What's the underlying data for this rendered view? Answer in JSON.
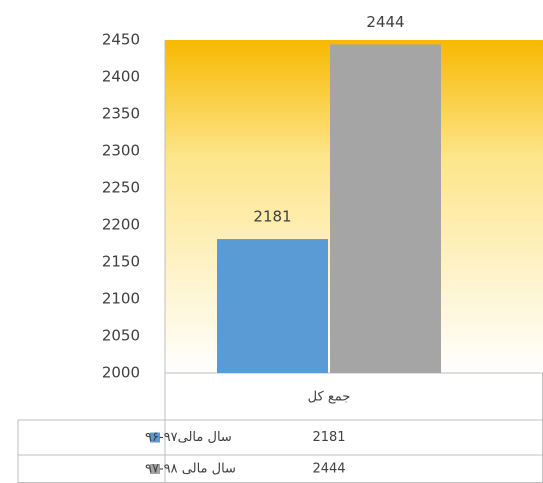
{
  "chart_data": {
    "type": "bar",
    "categories": [
      "جمع کل"
    ],
    "series": [
      {
        "name": "سال مالی۹۷-۹۶",
        "color": "#5b9bd5",
        "values": [
          2181
        ]
      },
      {
        "name": "سال مالی ۹۸-۹۷",
        "color": "#a5a5a5",
        "values": [
          2444
        ]
      }
    ],
    "ylim": [
      2000,
      2450
    ],
    "yticks": [
      2000,
      2050,
      2100,
      2150,
      2200,
      2250,
      2300,
      2350,
      2400,
      2450
    ],
    "grid": false
  }
}
